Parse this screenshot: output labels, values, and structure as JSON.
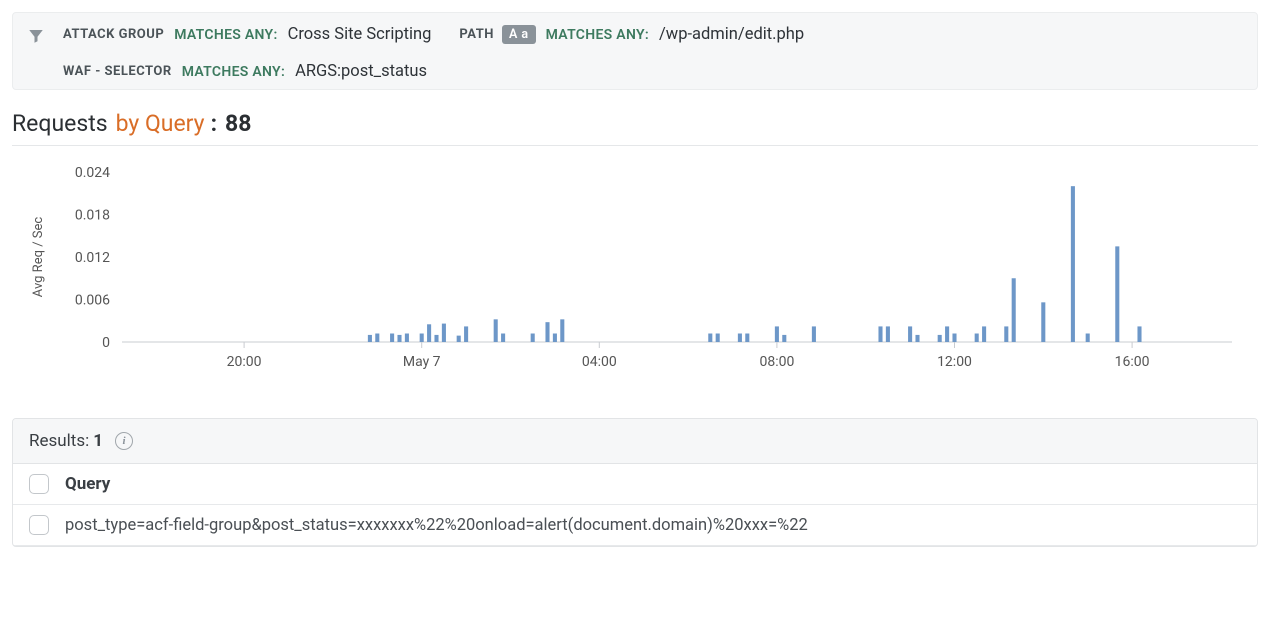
{
  "colors": {
    "accent": "#d96d27",
    "green": "#3d7a5f",
    "bar": "#6d97c8",
    "axis": "#c9ccd0",
    "panel_bg": "#f6f7f8",
    "border": "#e2e4e6",
    "text_primary": "#2b2f33",
    "text_secondary": "#555"
  },
  "filters": [
    [
      {
        "label": "ATTACK GROUP",
        "op": "MATCHES ANY:",
        "value": "Cross Site Scripting",
        "case_badge": null
      },
      {
        "label": "PATH",
        "op": "MATCHES ANY:",
        "value": "/wp-admin/edit.php",
        "case_badge": "A a"
      }
    ],
    [
      {
        "label": "WAF - SELECTOR",
        "op": "MATCHES ANY:",
        "value": "ARGS:post_status",
        "case_badge": null
      }
    ]
  ],
  "title": {
    "main": "Requests",
    "accent": "by Query",
    "separator": ":",
    "count": "88"
  },
  "chart": {
    "type": "bar",
    "ylabel": "Avg Req / Sec",
    "ylim": [
      0,
      0.024
    ],
    "yticks": [
      0,
      0.006,
      0.012,
      0.018,
      0.024
    ],
    "xticks_at": [
      16,
      40,
      64,
      88,
      112,
      136
    ],
    "xticks_labels": [
      "20:00",
      "May 7",
      "04:00",
      "08:00",
      "12:00",
      "16:00"
    ],
    "n_slots": 150,
    "bar_width_factor": 0.55,
    "bar_color": "#6d97c8",
    "background_color": "#ffffff",
    "axis_color": "#c9ccd0",
    "label_fontsize": 13,
    "bars": [
      {
        "i": 33,
        "v": 0.001
      },
      {
        "i": 34,
        "v": 0.0012
      },
      {
        "i": 36,
        "v": 0.0012
      },
      {
        "i": 37,
        "v": 0.001
      },
      {
        "i": 38,
        "v": 0.0012
      },
      {
        "i": 40,
        "v": 0.0012
      },
      {
        "i": 41,
        "v": 0.0025
      },
      {
        "i": 42,
        "v": 0.001
      },
      {
        "i": 43,
        "v": 0.0026
      },
      {
        "i": 45,
        "v": 0.0009
      },
      {
        "i": 46,
        "v": 0.0022
      },
      {
        "i": 50,
        "v": 0.0032
      },
      {
        "i": 51,
        "v": 0.0012
      },
      {
        "i": 55,
        "v": 0.0012
      },
      {
        "i": 57,
        "v": 0.0028
      },
      {
        "i": 58,
        "v": 0.0012
      },
      {
        "i": 59,
        "v": 0.0032
      },
      {
        "i": 79,
        "v": 0.0012
      },
      {
        "i": 80,
        "v": 0.0012
      },
      {
        "i": 83,
        "v": 0.0012
      },
      {
        "i": 84,
        "v": 0.0012
      },
      {
        "i": 88,
        "v": 0.0022
      },
      {
        "i": 89,
        "v": 0.001
      },
      {
        "i": 93,
        "v": 0.0022
      },
      {
        "i": 102,
        "v": 0.0022
      },
      {
        "i": 103,
        "v": 0.0022
      },
      {
        "i": 106,
        "v": 0.0022
      },
      {
        "i": 107,
        "v": 0.001
      },
      {
        "i": 110,
        "v": 0.001
      },
      {
        "i": 111,
        "v": 0.0022
      },
      {
        "i": 112,
        "v": 0.0012
      },
      {
        "i": 115,
        "v": 0.0012
      },
      {
        "i": 116,
        "v": 0.0022
      },
      {
        "i": 119,
        "v": 0.0022
      },
      {
        "i": 120,
        "v": 0.009
      },
      {
        "i": 124,
        "v": 0.0056
      },
      {
        "i": 128,
        "v": 0.022
      },
      {
        "i": 130,
        "v": 0.0012
      },
      {
        "i": 134,
        "v": 0.0135
      },
      {
        "i": 137,
        "v": 0.0022
      }
    ]
  },
  "results": {
    "label": "Results:",
    "count": "1",
    "column_header": "Query",
    "rows": [
      "post_type=acf-field-group&post_status=xxxxxxx%22%20onload=alert(document.domain)%20xxx=%22"
    ]
  }
}
